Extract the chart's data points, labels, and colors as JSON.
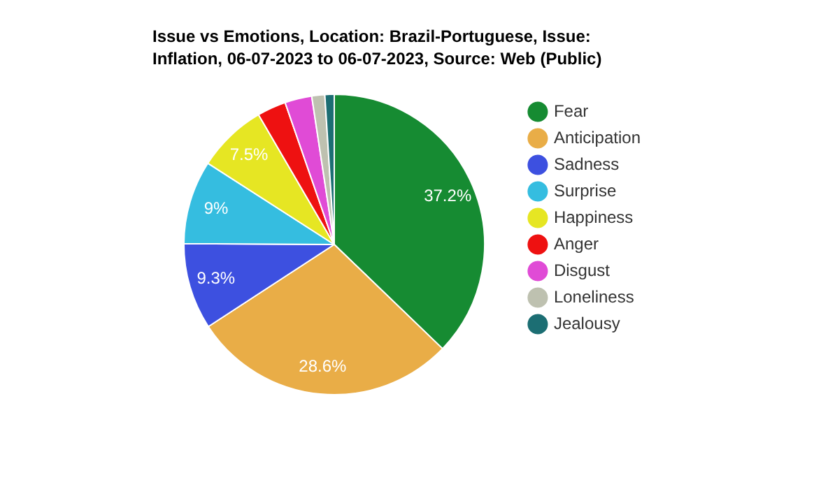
{
  "chart_data": {
    "type": "pie",
    "title": "Issue vs Emotions, Location: Brazil-Portuguese, Issue: Inflation, 06-07-2023 to 06-07-2023, Source: Web (Public)",
    "categories": [
      "Fear",
      "Anticipation",
      "Sadness",
      "Surprise",
      "Happiness",
      "Anger",
      "Disgust",
      "Loneliness",
      "Jealousy"
    ],
    "values": [
      37.2,
      28.6,
      9.3,
      9,
      7.5,
      3.1,
      2.9,
      1.4,
      1.0
    ],
    "colors": [
      "#168b32",
      "#e9ad47",
      "#3d50e0",
      "#35bde0",
      "#e6e623",
      "#ee1111",
      "#e04bd6",
      "#bec1b0",
      "#1c6e73"
    ],
    "value_labels": [
      "37.2%",
      "28.6%",
      "9.3%",
      "9%",
      "7.5%",
      null,
      null,
      null,
      null
    ],
    "legend": "right"
  }
}
